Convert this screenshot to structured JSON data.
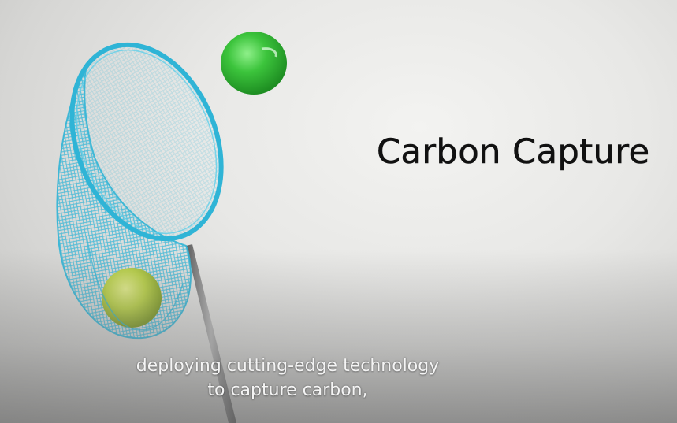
{
  "title": "Carbon Capture",
  "subtitle_lines": [
    "deploying cutting-edge technology",
    "to capture carbon,"
  ],
  "colors": {
    "net": "#2fb4d6",
    "flying_ball": "#3cc43c",
    "caught_ball": "#b8cf4a",
    "handle": "#8a8a8a"
  }
}
